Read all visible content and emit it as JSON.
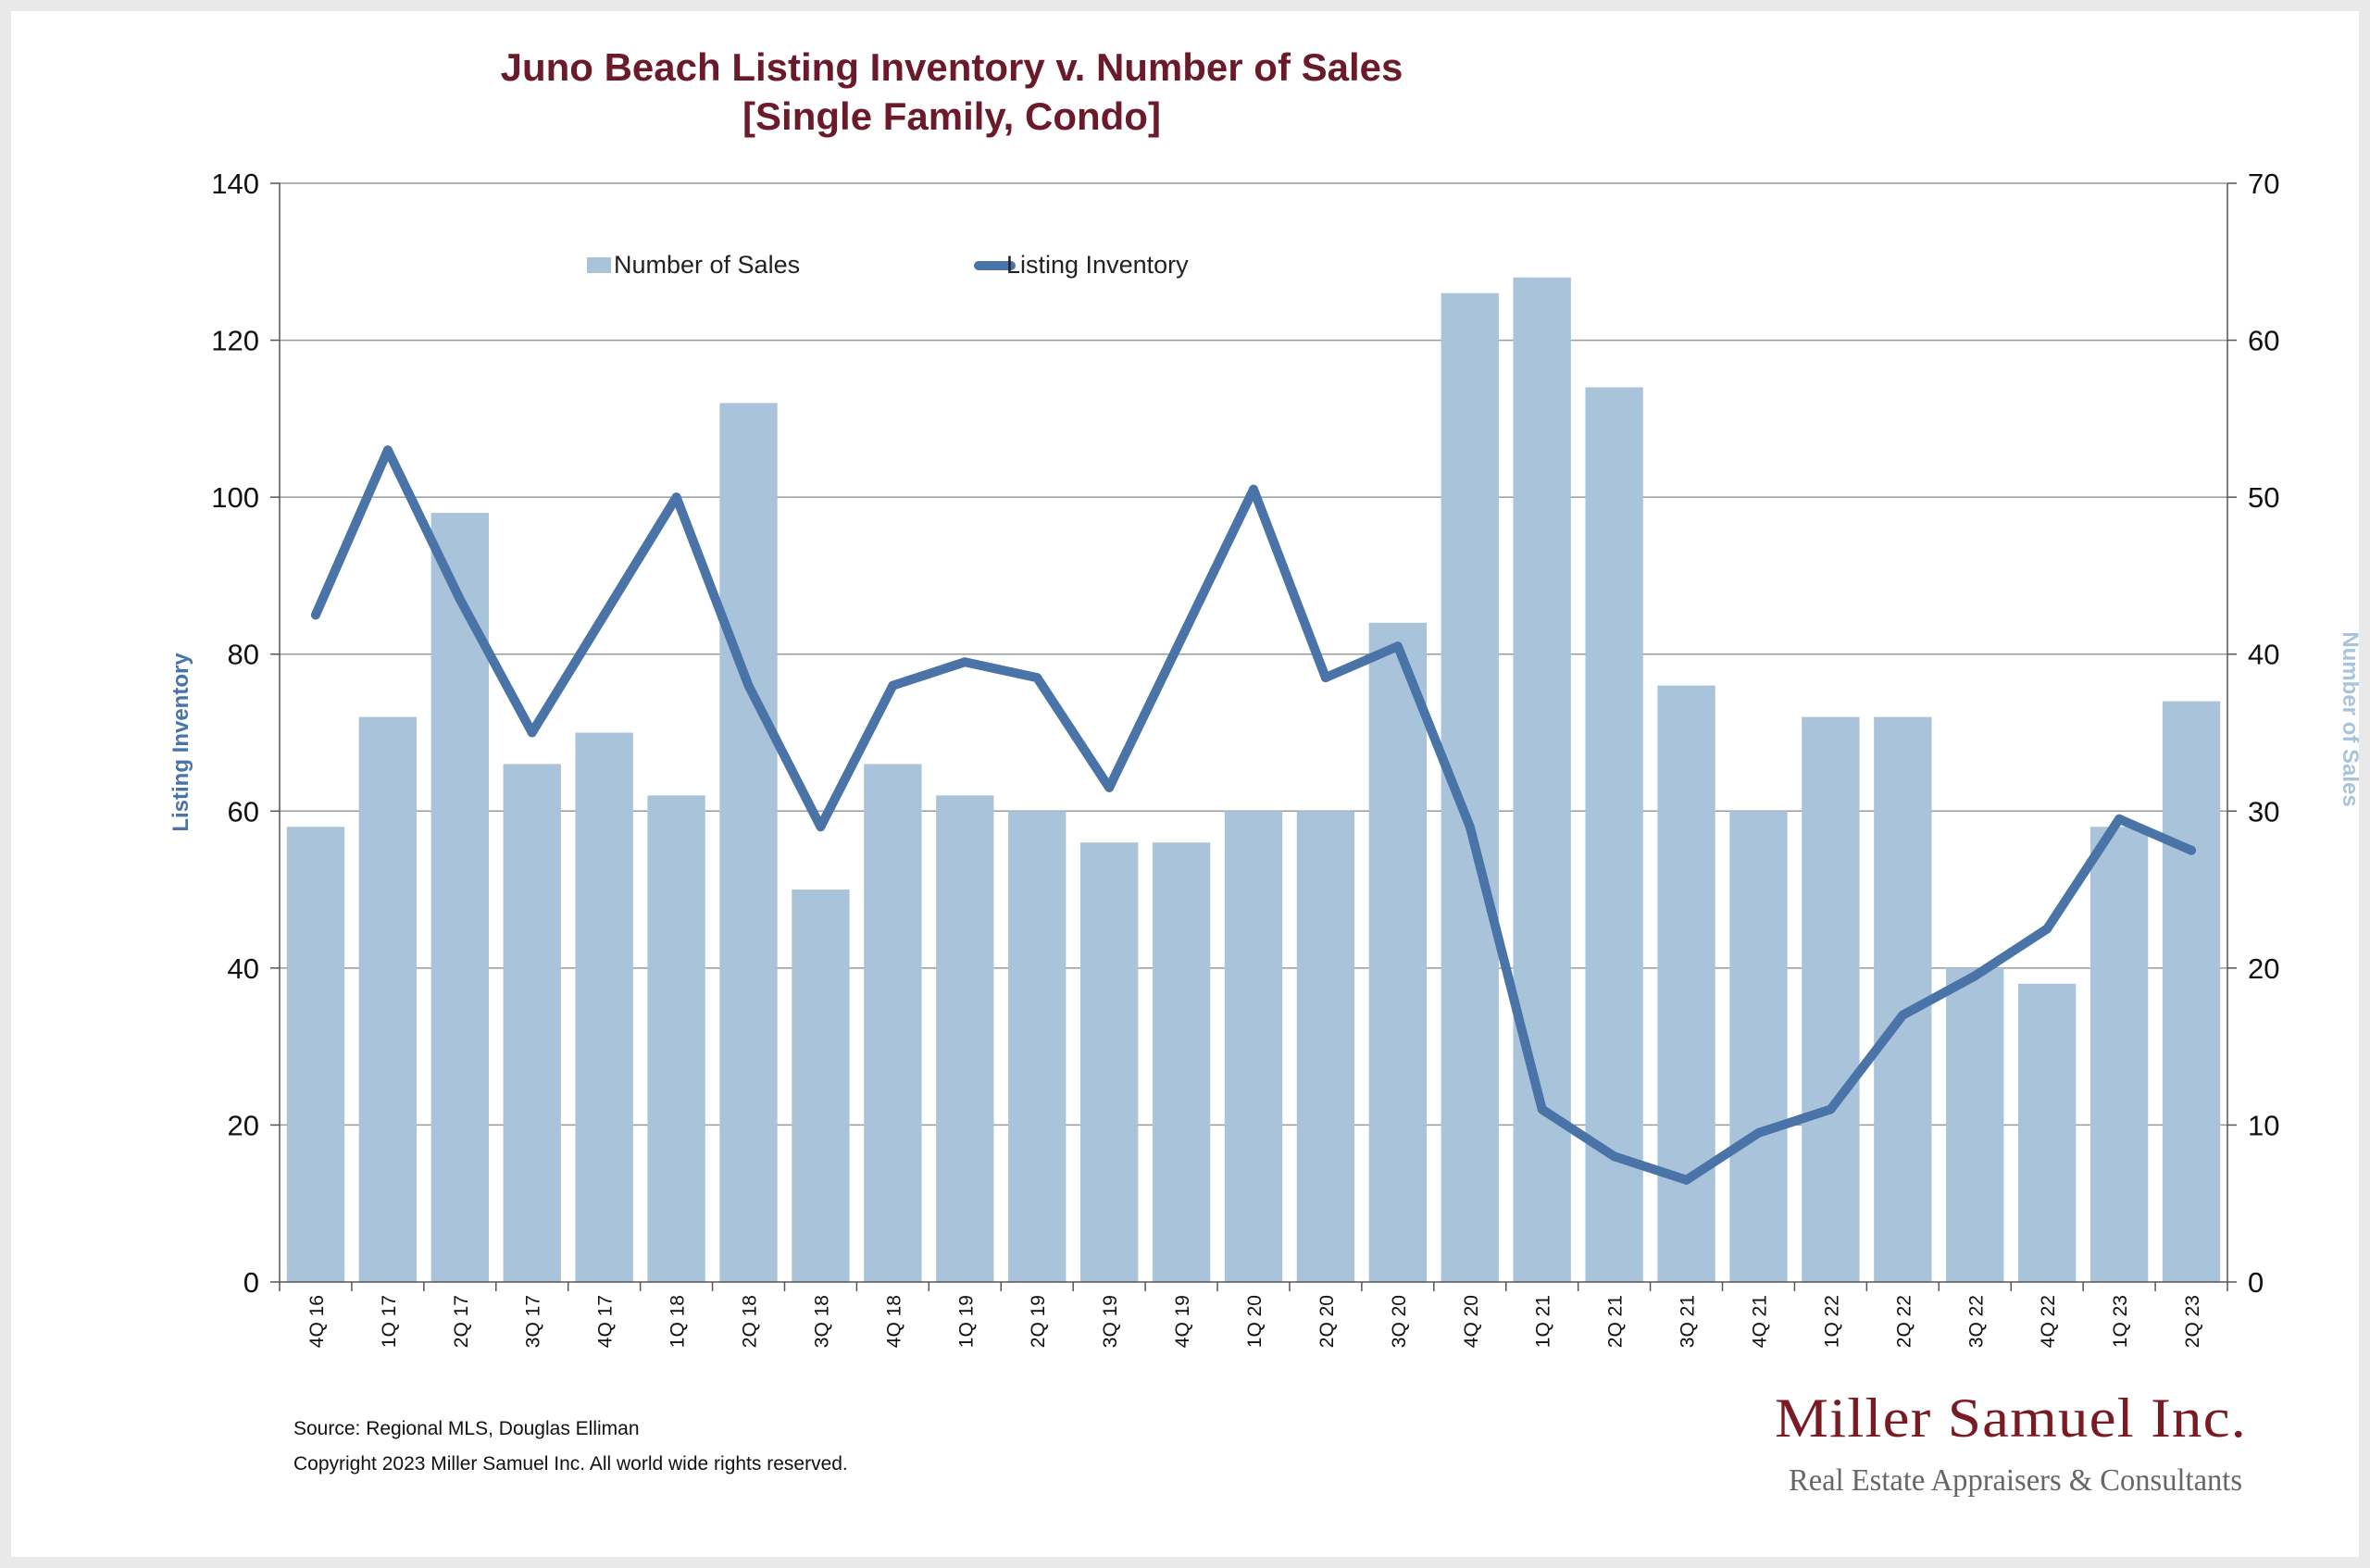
{
  "chart_data": {
    "type": "bar",
    "title_line1": "Juno Beach Listing Inventory v. Number of Sales",
    "title_line2": "[Single Family, Condo]",
    "ylabel_left": "Listing Inventory",
    "ylabel_right": "Number of Sales",
    "ylim_left": [
      0,
      140
    ],
    "ylim_right": [
      0,
      70
    ],
    "yticks_left": [
      "0",
      "20",
      "40",
      "60",
      "80",
      "100",
      "120",
      "140"
    ],
    "yticks_right": [
      "0",
      "10",
      "20",
      "30",
      "40",
      "50",
      "60",
      "70"
    ],
    "grid": true,
    "legend_position": "top",
    "categories": [
      "4Q 16",
      "1Q 17",
      "2Q 17",
      "3Q 17",
      "4Q 17",
      "1Q 18",
      "2Q 18",
      "3Q 18",
      "4Q 18",
      "1Q 19",
      "2Q 19",
      "3Q 19",
      "4Q 19",
      "1Q 20",
      "2Q 20",
      "3Q 20",
      "4Q 20",
      "1Q 21",
      "2Q 21",
      "3Q 21",
      "4Q 21",
      "1Q 22",
      "2Q 22",
      "3Q 22",
      "4Q 22",
      "1Q 23",
      "2Q 23"
    ],
    "series": [
      {
        "name": "Number of Sales",
        "type": "bar",
        "axis": "right",
        "color": "#a9c4da",
        "values": [
          29,
          36,
          49,
          33,
          35,
          31,
          56,
          25,
          33,
          31,
          30,
          28,
          28,
          30,
          30,
          42,
          63,
          64,
          57,
          38,
          30,
          36,
          36,
          20,
          19,
          29,
          37
        ]
      },
      {
        "name": "Listing Inventory",
        "type": "line",
        "axis": "left",
        "color": "#4a74a8",
        "values": [
          85,
          106,
          87,
          70,
          85,
          100,
          76,
          58,
          76,
          79,
          77,
          63,
          82,
          101,
          77,
          81,
          58,
          22,
          16,
          13,
          19,
          22,
          34,
          39,
          45,
          59,
          55
        ]
      }
    ],
    "source": "Source: Regional MLS, Douglas Elliman",
    "copyright": "Copyright 2023 Miller Samuel Inc.  All world wide rights reserved."
  },
  "logo": {
    "name": "Miller Samuel Inc.",
    "tagline": "Real Estate Appraisers & Consultants"
  }
}
